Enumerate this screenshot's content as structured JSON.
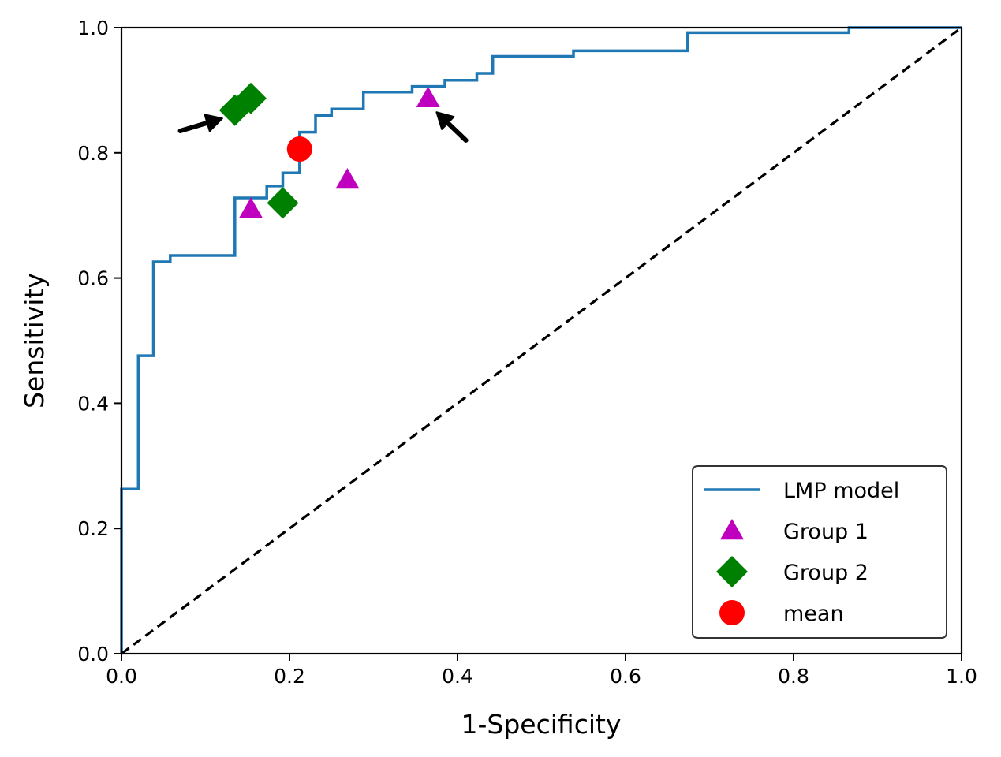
{
  "chart_data": {
    "type": "line",
    "title": "",
    "xlabel": "1-Specificity",
    "ylabel": "Sensitivity",
    "xlim": [
      0.0,
      1.0
    ],
    "ylim": [
      0.0,
      1.0
    ],
    "xticks": [
      "0.0",
      "0.2",
      "0.4",
      "0.6",
      "0.8",
      "1.0"
    ],
    "yticks": [
      "0.0",
      "0.2",
      "0.4",
      "0.6",
      "0.8",
      "1.0"
    ],
    "xtick_values": [
      0.0,
      0.2,
      0.4,
      0.6,
      0.8,
      1.0
    ],
    "ytick_values": [
      0.0,
      0.2,
      0.4,
      0.6,
      0.8,
      1.0
    ],
    "grid": false,
    "legend_position": "lower-right",
    "series": [
      {
        "name": "LMP model",
        "kind": "step",
        "color": "#1f77b4",
        "points": [
          [
            0.0,
            0.0
          ],
          [
            0.0,
            0.263
          ],
          [
            0.02,
            0.263
          ],
          [
            0.02,
            0.476
          ],
          [
            0.038,
            0.476
          ],
          [
            0.038,
            0.626
          ],
          [
            0.058,
            0.626
          ],
          [
            0.058,
            0.636
          ],
          [
            0.135,
            0.636
          ],
          [
            0.135,
            0.728
          ],
          [
            0.173,
            0.728
          ],
          [
            0.173,
            0.747
          ],
          [
            0.192,
            0.747
          ],
          [
            0.192,
            0.768
          ],
          [
            0.212,
            0.768
          ],
          [
            0.212,
            0.833
          ],
          [
            0.231,
            0.833
          ],
          [
            0.231,
            0.86
          ],
          [
            0.25,
            0.86
          ],
          [
            0.25,
            0.87
          ],
          [
            0.288,
            0.87
          ],
          [
            0.288,
            0.897
          ],
          [
            0.346,
            0.897
          ],
          [
            0.346,
            0.906
          ],
          [
            0.385,
            0.906
          ],
          [
            0.385,
            0.916
          ],
          [
            0.423,
            0.916
          ],
          [
            0.423,
            0.927
          ],
          [
            0.442,
            0.927
          ],
          [
            0.442,
            0.954
          ],
          [
            0.538,
            0.954
          ],
          [
            0.538,
            0.963
          ],
          [
            0.674,
            0.963
          ],
          [
            0.674,
            0.992
          ],
          [
            0.866,
            0.992
          ],
          [
            0.866,
            1.0
          ],
          [
            1.0,
            1.0
          ]
        ]
      },
      {
        "name": "chance",
        "kind": "dashed",
        "color": "#000000",
        "legend": false,
        "points": [
          [
            0.0,
            0.0
          ],
          [
            1.0,
            1.0
          ]
        ]
      },
      {
        "name": "Group 1",
        "kind": "scatter",
        "marker": "triangle",
        "color": "#bf00bf",
        "points": [
          [
            0.154,
            0.71
          ],
          [
            0.269,
            0.757
          ],
          [
            0.365,
            0.887
          ]
        ]
      },
      {
        "name": "Group 2",
        "kind": "scatter",
        "marker": "diamond",
        "color": "#008000",
        "points": [
          [
            0.135,
            0.868
          ],
          [
            0.154,
            0.887
          ],
          [
            0.192,
            0.72
          ]
        ]
      },
      {
        "name": "mean",
        "kind": "scatter",
        "marker": "circle",
        "color": "#ff0000",
        "points": [
          [
            0.212,
            0.806
          ]
        ]
      }
    ],
    "annotations": [
      {
        "type": "arrow",
        "from": [
          0.07,
          0.835
        ],
        "to": [
          0.12,
          0.855
        ],
        "color": "#000000",
        "note": "points to Group 2 markers"
      },
      {
        "type": "arrow",
        "from": [
          0.41,
          0.82
        ],
        "to": [
          0.375,
          0.865
        ],
        "color": "#000000",
        "note": "points to Group 1 marker"
      }
    ],
    "legend": [
      {
        "label": "LMP model",
        "marker": "line",
        "color": "#1f77b4"
      },
      {
        "label": "Group 1",
        "marker": "triangle",
        "color": "#bf00bf"
      },
      {
        "label": "Group 2",
        "marker": "diamond",
        "color": "#008000"
      },
      {
        "label": "mean",
        "marker": "circle",
        "color": "#ff0000"
      }
    ]
  }
}
